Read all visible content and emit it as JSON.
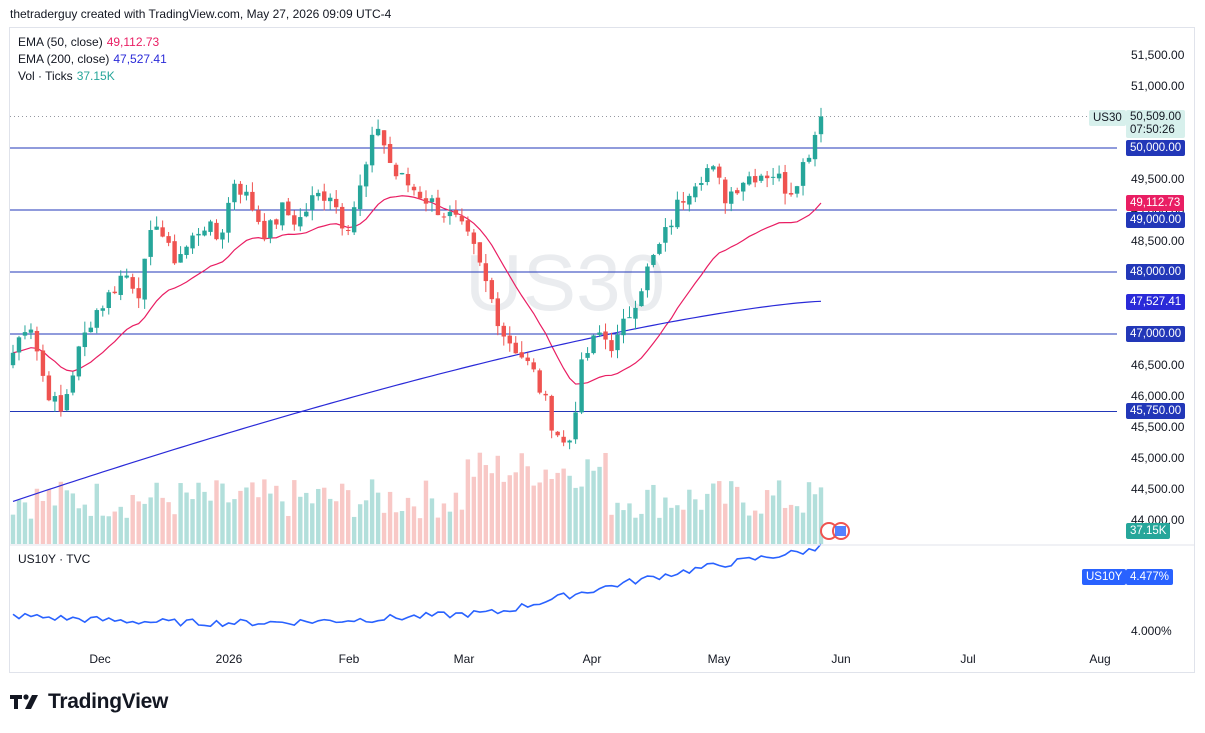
{
  "header": {
    "text": "thetraderguy created with TradingView.com, May 27, 2026 09:09 UTC-4"
  },
  "watermark": "US30",
  "legend": {
    "ema50_label": "EMA (50, close)",
    "ema50_value": "49,112.73",
    "ema200_label": "EMA (200, close)",
    "ema200_value": "47,527.41",
    "vol_label": "Vol · Ticks",
    "vol_value": "37.15K"
  },
  "pane2": {
    "label": "US10Y · TVC",
    "symbol": "US10Y",
    "value": "4.477%",
    "tick": "4.000%"
  },
  "footer": {
    "brand": "TradingView"
  },
  "colors": {
    "up": "#26a69a",
    "down": "#ef5350",
    "ema50": "#e91e63",
    "ema200": "#2a2ad8",
    "hline": "#2237b8",
    "us10y": "#2962ff"
  },
  "price_axis": [
    "51,500.00",
    "51,000.00",
    "50,500.00",
    "50,000.00",
    "49,500.00",
    "49,000.00",
    "48,500.00",
    "48,000.00",
    "47,500.00",
    "47,000.00",
    "46,500.00",
    "46,000.00",
    "45,500.00",
    "45,000.00",
    "44,500.00",
    "44,000.00"
  ],
  "tags": {
    "symbol": "US30",
    "last_price": "50,509.00",
    "countdown": "07:50:26",
    "level_50000": "50,000.00",
    "ema50": "49,112.73",
    "level_49000": "49,000.00",
    "level_48000": "48,000.00",
    "ema200": "47,527.41",
    "level_47000": "47,000.00",
    "level_45750": "45,750.00",
    "volume": "37.15K"
  },
  "time_axis": [
    "Dec",
    "2026",
    "Feb",
    "Mar",
    "Apr",
    "May",
    "Jun",
    "Jul",
    "Aug"
  ],
  "chart_data": {
    "type": "candlestick",
    "horizontal_levels": [
      50000,
      49000,
      48000,
      47000,
      45750
    ],
    "last_price": 50509,
    "ylim": [
      43600,
      51800
    ],
    "series": [
      {
        "name": "US30",
        "keypoints_close": [
          46700,
          47300,
          46200,
          45700,
          46600,
          47300,
          47600,
          48000,
          47700,
          48900,
          48200,
          48400,
          48800,
          48500,
          49500,
          49100,
          48600,
          49000,
          48800,
          49200,
          49300,
          48700,
          49400,
          50400,
          49600,
          49400,
          49200,
          49000,
          48800,
          48400,
          47700,
          47000,
          46700,
          46300,
          45600,
          45100,
          46600,
          47000,
          46800,
          47400,
          48000,
          48500,
          49100,
          49500,
          49700,
          49200,
          49500,
          49600,
          49600,
          49300,
          49800,
          50509
        ]
      },
      {
        "name": "EMA (50, close)",
        "last": 49112.73
      },
      {
        "name": "EMA (200, close)",
        "last": 47527.41
      },
      {
        "name": "Vol · Ticks",
        "last": "37.15K"
      },
      {
        "name": "US10Y",
        "last": 4.477
      }
    ]
  }
}
